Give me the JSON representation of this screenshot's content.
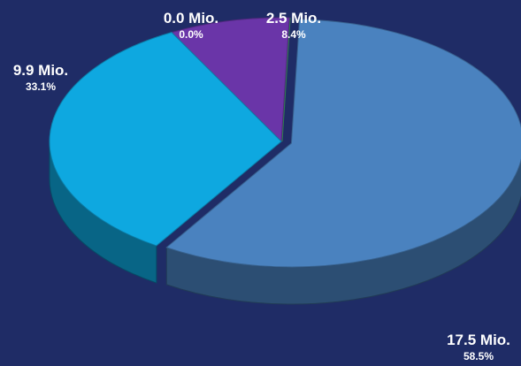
{
  "chart_data": {
    "type": "pie",
    "three_d": true,
    "slices": [
      {
        "value_label": "0.0 Mio.",
        "percent_label": "0.0%",
        "value": 0.0,
        "percent": 0.0,
        "color": "#2e7d4f"
      },
      {
        "value_label": "2.5 Mio.",
        "percent_label": "8.4%",
        "value": 2.5,
        "percent": 8.4,
        "color": "#6a35a8"
      },
      {
        "value_label": "9.9 Mio.",
        "percent_label": "33.1%",
        "value": 9.9,
        "percent": 33.1,
        "color": "#0ea8e0"
      },
      {
        "value_label": "17.5 Mio.",
        "percent_label": "58.5%",
        "value": 17.5,
        "percent": 58.5,
        "color": "#4a82bf"
      }
    ],
    "background": "#1f2c66"
  }
}
